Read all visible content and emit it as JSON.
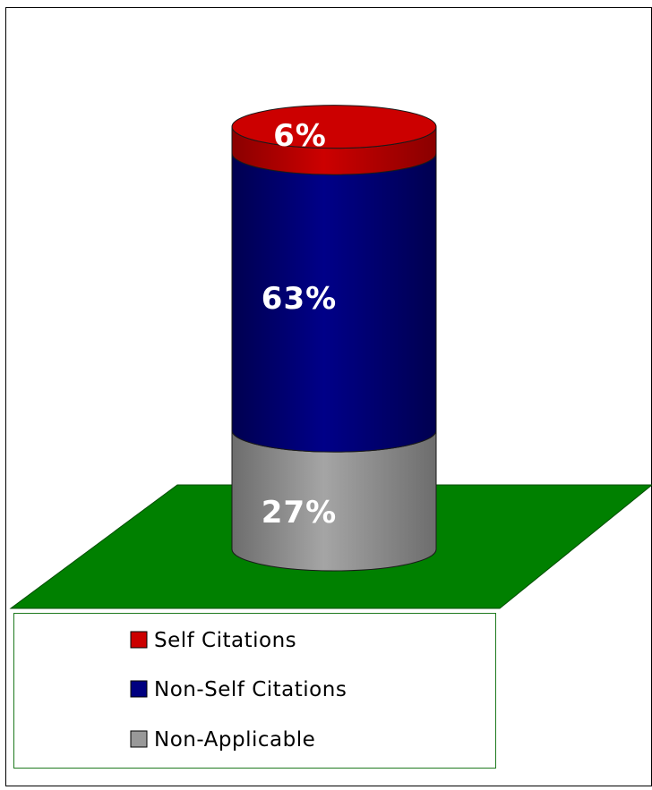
{
  "chart_data": {
    "type": "bar",
    "subtype": "stacked-3d-cylinder-100-percent",
    "title": "",
    "xlabel": "",
    "ylabel": "",
    "categories": [
      ""
    ],
    "series": [
      {
        "name": "Self Citations",
        "values": [
          6
        ],
        "label": "6%",
        "color": "#cc0000"
      },
      {
        "name": "Non-Self Citations",
        "values": [
          63
        ],
        "label": "63%",
        "color": "#000080"
      },
      {
        "name": "Non-Applicable",
        "values": [
          27
        ],
        "label": "27%",
        "color": "#999999"
      }
    ],
    "ylim": [
      0,
      100
    ],
    "grid": false,
    "legend_position": "bottom-left",
    "floor_color": "#008000"
  }
}
